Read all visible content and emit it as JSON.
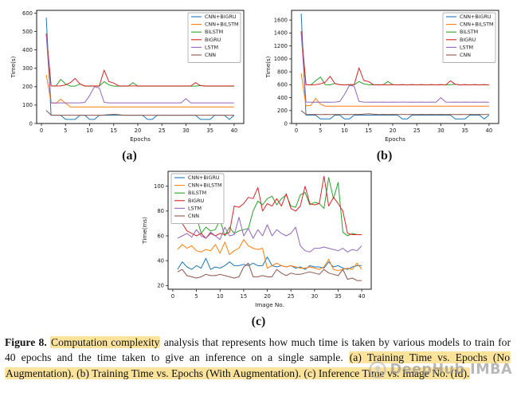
{
  "figure": {
    "caption": {
      "label": "Figure 8.",
      "highlight1": "Computation complexity",
      "body": " analysis that represents how much time is taken by various models to train for 40 epochs and the time taken to give an inference on a single sample. ",
      "highlight2": "(a) Training Time vs. Epochs (No Augmentation). (b) Training Time vs. Epochs (With Augmentation). (c) Inference Time vs. Image No. (Id)."
    },
    "panel_labels": {
      "a": "(a)",
      "b": "(b)",
      "c": "(c)"
    },
    "highlight_color": "#fbe39b"
  },
  "watermark": {
    "text": "DeepHub IMBA",
    "icon": "circle-logo"
  },
  "chart_data": [
    {
      "id": "a",
      "type": "line",
      "xlabel": "Epochs",
      "ylabel": "Time(s)",
      "xlim": [
        -1,
        42
      ],
      "ylim": [
        0,
        615
      ],
      "x_start": 1,
      "xticks": [
        0,
        5,
        10,
        15,
        20,
        25,
        30,
        35,
        40
      ],
      "yticks": [
        0,
        100,
        200,
        300,
        400,
        500,
        600
      ],
      "legend_position": "top-right",
      "series": [
        {
          "name": "CNN+BiGRU",
          "color": "#1f77b4",
          "values": [
            575,
            45,
            45,
            45,
            22,
            22,
            22,
            45,
            45,
            22,
            22,
            45,
            45,
            45,
            45,
            45,
            45,
            45,
            45,
            45,
            45,
            22,
            22,
            45,
            45,
            45,
            45,
            45,
            45,
            45,
            45,
            45,
            22,
            22,
            22,
            45,
            45,
            45,
            22,
            45
          ]
        },
        {
          "name": "CNN+BiLSTM",
          "color": "#ff7f0e",
          "values": [
            265,
            112,
            110,
            132,
            110,
            90,
            90,
            90,
            90,
            90,
            90,
            90,
            90,
            90,
            90,
            90,
            90,
            90,
            90,
            90,
            90,
            90,
            90,
            90,
            90,
            90,
            90,
            90,
            90,
            90,
            90,
            90,
            90,
            90,
            90,
            90,
            90,
            90,
            90,
            90
          ]
        },
        {
          "name": "BiLSTM",
          "color": "#2ca02c",
          "values": [
            490,
            205,
            203,
            240,
            215,
            203,
            203,
            215,
            203,
            203,
            203,
            203,
            228,
            210,
            203,
            203,
            203,
            203,
            222,
            203,
            203,
            203,
            203,
            203,
            203,
            203,
            203,
            203,
            203,
            203,
            203,
            203,
            206,
            203,
            203,
            203,
            203,
            203,
            203,
            203
          ]
        },
        {
          "name": "BiGRU",
          "color": "#d62728",
          "values": [
            487,
            205,
            204,
            204,
            210,
            222,
            245,
            215,
            204,
            204,
            204,
            204,
            290,
            228,
            220,
            205,
            204,
            204,
            204,
            204,
            204,
            204,
            204,
            204,
            204,
            204,
            204,
            204,
            204,
            204,
            204,
            222,
            206,
            204,
            204,
            204,
            204,
            204,
            204,
            204
          ]
        },
        {
          "name": "LSTM",
          "color": "#9467bd",
          "values": [
            480,
            112,
            112,
            112,
            112,
            112,
            112,
            112,
            115,
            152,
            200,
            193,
            115,
            112,
            112,
            112,
            112,
            112,
            112,
            112,
            112,
            112,
            112,
            112,
            112,
            112,
            112,
            112,
            112,
            135,
            112,
            112,
            112,
            112,
            112,
            112,
            112,
            112,
            112,
            112
          ]
        },
        {
          "name": "CNN",
          "color": "#8c564b",
          "values": [
            70,
            46,
            45,
            45,
            45,
            45,
            45,
            45,
            45,
            45,
            45,
            45,
            46,
            48,
            50,
            48,
            45,
            45,
            45,
            45,
            45,
            45,
            45,
            45,
            45,
            45,
            45,
            45,
            45,
            45,
            45,
            45,
            45,
            45,
            45,
            45,
            45,
            45,
            45,
            45
          ]
        }
      ]
    },
    {
      "id": "b",
      "type": "line",
      "xlabel": "Epochs",
      "ylabel": "Time(s)",
      "xlim": [
        -1,
        42
      ],
      "ylim": [
        0,
        1750
      ],
      "x_start": 1,
      "xticks": [
        0,
        5,
        10,
        15,
        20,
        25,
        30,
        35,
        40
      ],
      "yticks": [
        0,
        200,
        400,
        600,
        800,
        1000,
        1200,
        1400,
        1600
      ],
      "legend_position": "top-right",
      "series": [
        {
          "name": "CNN+BiGRU",
          "color": "#1f77b4",
          "values": [
            1700,
            130,
            130,
            130,
            70,
            70,
            70,
            130,
            130,
            70,
            70,
            130,
            130,
            130,
            130,
            130,
            130,
            130,
            130,
            130,
            130,
            70,
            70,
            130,
            130,
            130,
            130,
            130,
            130,
            130,
            130,
            130,
            70,
            70,
            70,
            130,
            130,
            130,
            70,
            130
          ]
        },
        {
          "name": "CNN+BiLSTM",
          "color": "#ff7f0e",
          "values": [
            775,
            272,
            278,
            390,
            300,
            268,
            268,
            268,
            268,
            268,
            268,
            268,
            268,
            268,
            268,
            268,
            268,
            268,
            268,
            268,
            268,
            268,
            268,
            268,
            268,
            268,
            268,
            268,
            268,
            268,
            268,
            268,
            268,
            268,
            268,
            268,
            268,
            268,
            268,
            268
          ]
        },
        {
          "name": "BiLSTM",
          "color": "#2ca02c",
          "values": [
            1430,
            600,
            598,
            660,
            720,
            600,
            598,
            620,
            600,
            598,
            600,
            598,
            650,
            612,
            600,
            598,
            600,
            598,
            650,
            600,
            598,
            600,
            598,
            600,
            598,
            600,
            598,
            600,
            598,
            600,
            598,
            600,
            606,
            598,
            600,
            598,
            600,
            598,
            600,
            598
          ]
        },
        {
          "name": "BiGRU",
          "color": "#d62728",
          "values": [
            1425,
            600,
            597,
            600,
            612,
            640,
            730,
            618,
            600,
            597,
            600,
            600,
            860,
            665,
            648,
            600,
            597,
            600,
            597,
            600,
            597,
            600,
            597,
            600,
            597,
            600,
            597,
            600,
            597,
            600,
            597,
            660,
            606,
            597,
            600,
            597,
            600,
            597,
            600,
            597
          ]
        },
        {
          "name": "LSTM",
          "color": "#9467bd",
          "values": [
            1400,
            332,
            330,
            332,
            330,
            332,
            330,
            332,
            340,
            450,
            590,
            575,
            340,
            332,
            330,
            332,
            330,
            332,
            330,
            332,
            330,
            332,
            330,
            332,
            330,
            332,
            330,
            332,
            330,
            400,
            332,
            330,
            332,
            330,
            332,
            330,
            332,
            330,
            332,
            330
          ]
        },
        {
          "name": "CNN",
          "color": "#8c564b",
          "values": [
            200,
            140,
            139,
            140,
            139,
            140,
            139,
            140,
            139,
            140,
            139,
            140,
            141,
            145,
            150,
            145,
            139,
            140,
            139,
            140,
            139,
            140,
            139,
            140,
            139,
            140,
            139,
            140,
            139,
            140,
            139,
            140,
            139,
            140,
            139,
            140,
            139,
            140,
            139,
            140
          ]
        }
      ]
    },
    {
      "id": "c",
      "type": "line",
      "xlabel": "Image No.",
      "ylabel": "Time(ms)",
      "xlim": [
        -1,
        42
      ],
      "ylim": [
        17,
        112
      ],
      "x_start": 1,
      "xticks": [
        0,
        5,
        10,
        15,
        20,
        25,
        30,
        35,
        40
      ],
      "yticks": [
        20,
        40,
        60,
        80,
        100
      ],
      "legend_position": "top-left",
      "series": [
        {
          "name": "CNN+BiGRU",
          "color": "#1f77b4",
          "values": [
            33,
            39,
            35,
            33,
            36,
            34,
            42,
            33,
            35,
            34,
            36,
            39,
            36,
            36,
            37,
            36,
            38,
            36,
            36,
            43,
            36,
            35,
            36,
            35,
            36,
            34,
            35,
            33,
            36,
            35,
            35,
            34,
            39,
            35,
            36,
            34,
            33,
            35,
            36,
            36
          ]
        },
        {
          "name": "CNN+BiLSTM",
          "color": "#ff7f0e",
          "values": [
            49,
            53,
            50,
            52,
            48,
            47,
            49,
            48,
            53,
            46,
            55,
            45,
            48,
            50,
            57,
            52,
            50,
            49,
            50,
            34,
            36,
            38,
            36,
            35,
            36,
            35,
            34,
            34,
            35,
            34,
            33,
            35,
            41,
            33,
            32,
            33,
            34,
            33,
            38,
            33
          ]
        },
        {
          "name": "BiLSTM",
          "color": "#2ca02c",
          "values": [
            76,
            75,
            74,
            77,
            76,
            62,
            67,
            64,
            65,
            73,
            60,
            67,
            62,
            64,
            65,
            66,
            80,
            88,
            85,
            90,
            92,
            85,
            90,
            93,
            84,
            83,
            93,
            95,
            85,
            87,
            86,
            82,
            107,
            90,
            103,
            63,
            60,
            62,
            61,
            61
          ]
        },
        {
          "name": "BiGRU",
          "color": "#d62728",
          "values": [
            76,
            70,
            64,
            62,
            60,
            62,
            58,
            62,
            60,
            62,
            61,
            63,
            84,
            83,
            86,
            91,
            90,
            99,
            80,
            86,
            84,
            90,
            84,
            94,
            82,
            80,
            84,
            100,
            86,
            85,
            86,
            108,
            84,
            91,
            86,
            80,
            62,
            61,
            61,
            61
          ]
        },
        {
          "name": "LSTM",
          "color": "#9467bd",
          "values": [
            58,
            60,
            62,
            59,
            65,
            60,
            58,
            63,
            60,
            57,
            67,
            60,
            61,
            75,
            60,
            66,
            58,
            65,
            60,
            69,
            60,
            65,
            62,
            60,
            62,
            67,
            52,
            48,
            47,
            50,
            50,
            51,
            50,
            49,
            48,
            50,
            47,
            49,
            48,
            52
          ]
        },
        {
          "name": "CNN",
          "color": "#8c564b",
          "values": [
            31,
            33,
            28,
            27,
            26,
            27,
            29,
            28,
            28,
            29,
            28,
            27,
            26,
            27,
            35,
            38,
            27,
            27,
            28,
            27,
            27,
            33,
            30,
            28,
            30,
            29,
            29,
            30,
            31,
            30,
            29,
            33,
            30,
            29,
            28,
            33,
            25,
            26,
            24,
            24
          ]
        }
      ]
    }
  ]
}
